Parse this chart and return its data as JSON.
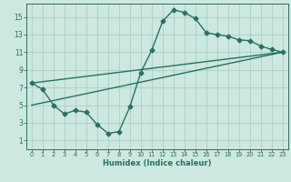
{
  "title": "",
  "xlabel": "Humidex (Indice chaleur)",
  "bg_color": "#cce8e0",
  "grid_color": "#aacfc8",
  "line_color": "#2a7060",
  "markersize": 2.5,
  "linewidth": 1.0,
  "xlim": [
    -0.5,
    23.5
  ],
  "ylim": [
    0,
    16.5
  ],
  "xticks": [
    0,
    1,
    2,
    3,
    4,
    5,
    6,
    7,
    8,
    9,
    10,
    11,
    12,
    13,
    14,
    15,
    16,
    17,
    18,
    19,
    20,
    21,
    22,
    23
  ],
  "yticks": [
    1,
    3,
    5,
    7,
    9,
    11,
    13,
    15
  ],
  "line1_x": [
    0,
    1,
    2,
    3,
    4,
    5,
    6,
    7,
    8,
    9,
    10,
    11,
    12,
    13,
    14,
    15,
    16,
    17,
    18,
    19,
    20,
    21,
    22,
    23
  ],
  "line1_y": [
    7.5,
    6.8,
    5.0,
    4.0,
    4.4,
    4.2,
    2.8,
    1.8,
    2.0,
    4.8,
    8.7,
    11.2,
    14.5,
    15.8,
    15.5,
    14.8,
    13.2,
    13.0,
    12.8,
    12.4,
    12.3,
    11.7,
    11.3,
    11.0
  ],
  "line2_x": [
    0,
    23
  ],
  "line2_y": [
    7.5,
    11.0
  ],
  "line3_x": [
    0,
    23
  ],
  "line3_y": [
    5.0,
    11.0
  ],
  "xlabel_fontsize": 6.0,
  "tick_fontsize_x": 4.8,
  "tick_fontsize_y": 5.5
}
